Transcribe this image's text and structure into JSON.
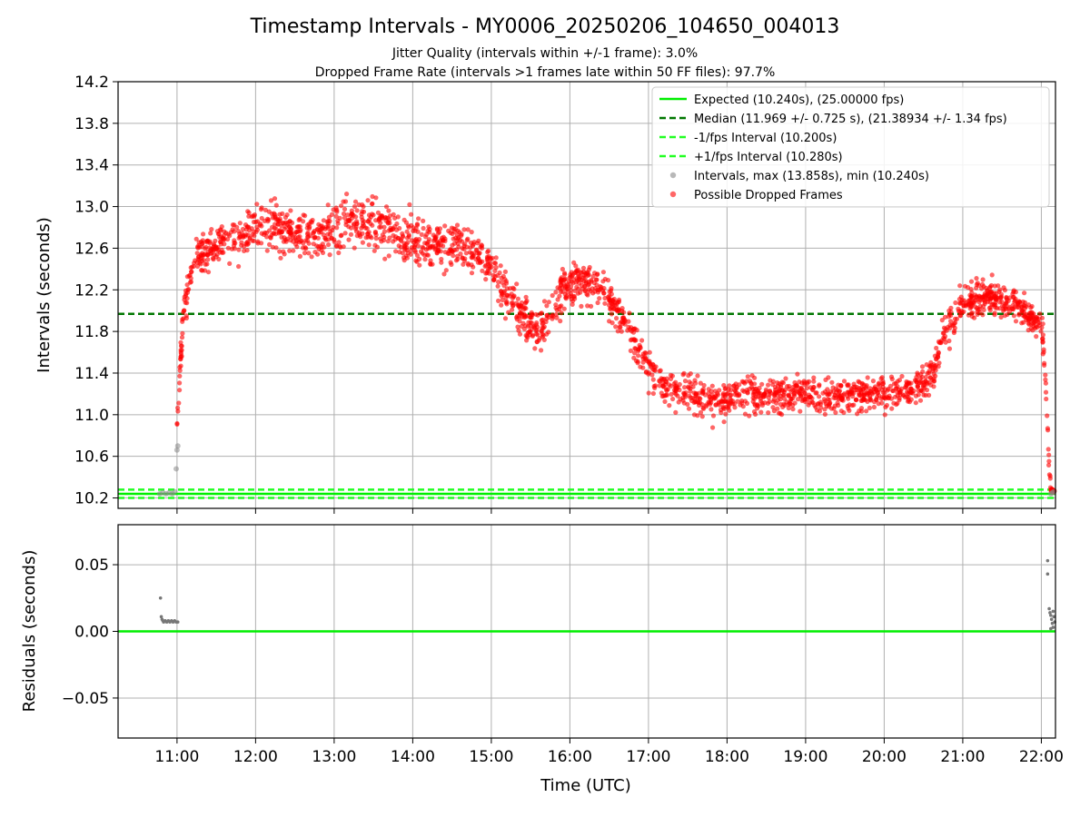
{
  "figure": {
    "title": "Timestamp Intervals - MY0006_20250206_104650_004013",
    "subtitle_1": "Jitter Quality (intervals within +/-1 frame): 3.0%",
    "subtitle_2": "Dropped Frame Rate (intervals >1 frames late within 50 FF files): 97.7%",
    "xlabel": "Time (UTC)"
  },
  "colors": {
    "expected": "#00ee00",
    "median": "#007700",
    "fps_bounds": "#22ff22",
    "intervals": "#888888",
    "dropped": "#ff0000",
    "grid": "#b0b0b0"
  },
  "chart_data": [
    {
      "type": "scatter",
      "panel": "intervals",
      "ylabel": "Intervals (seconds)",
      "x_unit": "hours UTC",
      "xlim": [
        10.25,
        22.18
      ],
      "ylim": [
        10.1,
        14.2
      ],
      "x_tick_labels": [
        "11:00",
        "12:00",
        "13:00",
        "14:00",
        "15:00",
        "16:00",
        "17:00",
        "18:00",
        "19:00",
        "20:00",
        "21:00",
        "22:00"
      ],
      "x_ticks": [
        11,
        12,
        13,
        14,
        15,
        16,
        17,
        18,
        19,
        20,
        21,
        22
      ],
      "y_ticks": [
        10.2,
        10.6,
        11.0,
        11.4,
        11.8,
        12.2,
        12.6,
        13.0,
        13.4,
        13.8,
        14.2
      ],
      "y_tick_labels": [
        "10.2",
        "10.6",
        "11.0",
        "11.4",
        "11.8",
        "12.2",
        "12.6",
        "13.0",
        "13.4",
        "13.8",
        "14.2"
      ],
      "grid": true,
      "legend_position": "top-right",
      "reference_lines": [
        {
          "name": "Expected (10.240s), (25.00000 fps)",
          "y": 10.24,
          "style": "solid",
          "color": "#00ee00"
        },
        {
          "name": "Median (11.969 +/- 0.725 s), (21.38934 +/- 1.34 fps)",
          "y": 11.969,
          "style": "dashed",
          "color": "#007700"
        },
        {
          "name": "-1/fps Interval (10.200s)",
          "y": 10.2,
          "style": "dashed",
          "color": "#22ff22"
        },
        {
          "name": "+1/fps Interval (10.280s)",
          "y": 10.28,
          "style": "dashed",
          "color": "#22ff22"
        }
      ],
      "series": [
        {
          "name": "Intervals, max (13.858s), min (10.240s)",
          "color": "#888888",
          "points": [
            [
              10.78,
              10.24
            ],
            [
              10.82,
              10.25
            ],
            [
              10.86,
              10.24
            ],
            [
              10.9,
              10.25
            ],
            [
              10.94,
              10.24
            ],
            [
              10.97,
              10.26
            ],
            [
              10.99,
              10.48
            ],
            [
              11.0,
              10.66
            ],
            [
              11.01,
              10.7
            ],
            [
              22.12,
              10.24
            ],
            [
              22.14,
              10.25
            ],
            [
              22.16,
              10.26
            ]
          ]
        },
        {
          "name": "Possible Dropped Frames",
          "color": "#ff0000",
          "trend": [
            [
              11.0,
              10.9
            ],
            [
              11.05,
              11.6
            ],
            [
              11.1,
              12.1
            ],
            [
              11.2,
              12.4
            ],
            [
              11.3,
              12.55
            ],
            [
              11.5,
              12.65
            ],
            [
              11.75,
              12.7
            ],
            [
              12.0,
              12.8
            ],
            [
              12.25,
              12.85
            ],
            [
              12.5,
              12.75
            ],
            [
              12.75,
              12.7
            ],
            [
              13.0,
              12.8
            ],
            [
              13.25,
              12.85
            ],
            [
              13.5,
              12.85
            ],
            [
              13.75,
              12.75
            ],
            [
              14.0,
              12.7
            ],
            [
              14.25,
              12.65
            ],
            [
              14.5,
              12.6
            ],
            [
              14.75,
              12.6
            ],
            [
              15.0,
              12.4
            ],
            [
              15.2,
              12.15
            ],
            [
              15.4,
              11.95
            ],
            [
              15.6,
              11.8
            ],
            [
              15.75,
              11.95
            ],
            [
              15.9,
              12.2
            ],
            [
              16.1,
              12.3
            ],
            [
              16.3,
              12.25
            ],
            [
              16.5,
              12.1
            ],
            [
              16.7,
              11.9
            ],
            [
              16.9,
              11.6
            ],
            [
              17.1,
              11.35
            ],
            [
              17.3,
              11.2
            ],
            [
              17.5,
              11.2
            ],
            [
              17.75,
              11.15
            ],
            [
              18.0,
              11.15
            ],
            [
              18.25,
              11.2
            ],
            [
              18.5,
              11.15
            ],
            [
              18.75,
              11.2
            ],
            [
              19.0,
              11.2
            ],
            [
              19.25,
              11.15
            ],
            [
              19.5,
              11.2
            ],
            [
              19.75,
              11.2
            ],
            [
              20.0,
              11.2
            ],
            [
              20.25,
              11.25
            ],
            [
              20.5,
              11.3
            ],
            [
              20.65,
              11.45
            ],
            [
              20.75,
              11.8
            ],
            [
              21.0,
              12.05
            ],
            [
              21.25,
              12.15
            ],
            [
              21.5,
              12.1
            ],
            [
              21.7,
              12.05
            ],
            [
              21.85,
              11.95
            ],
            [
              22.0,
              11.9
            ],
            [
              22.05,
              11.4
            ],
            [
              22.08,
              10.9
            ],
            [
              22.1,
              10.5
            ],
            [
              22.12,
              10.3
            ]
          ],
          "spread": [
            [
              11.0,
              0.15
            ],
            [
              11.2,
              0.25
            ],
            [
              12.0,
              0.3
            ],
            [
              13.0,
              0.3
            ],
            [
              14.0,
              0.28
            ],
            [
              15.0,
              0.25
            ],
            [
              16.0,
              0.25
            ],
            [
              17.0,
              0.22
            ],
            [
              18.0,
              0.22
            ],
            [
              19.0,
              0.2
            ],
            [
              20.0,
              0.2
            ],
            [
              21.0,
              0.22
            ],
            [
              22.0,
              0.2
            ],
            [
              22.12,
              0.1
            ]
          ],
          "count": 2400
        }
      ]
    },
    {
      "type": "scatter",
      "panel": "residuals",
      "ylabel": "Residuals (seconds)",
      "xlabel": "Time (UTC)",
      "xlim": [
        10.25,
        22.18
      ],
      "ylim": [
        -0.08,
        0.08
      ],
      "y_ticks": [
        0.05,
        0.0,
        -0.05
      ],
      "y_tick_labels": [
        "0.05",
        "0.00",
        "−0.05"
      ],
      "x_ticks": [
        11,
        12,
        13,
        14,
        15,
        16,
        17,
        18,
        19,
        20,
        21,
        22
      ],
      "x_tick_labels": [
        "11:00",
        "12:00",
        "13:00",
        "14:00",
        "15:00",
        "16:00",
        "17:00",
        "18:00",
        "19:00",
        "20:00",
        "21:00",
        "22:00"
      ],
      "grid": true,
      "reference_lines": [
        {
          "name": "Expected",
          "y": 0.0,
          "style": "solid",
          "color": "#00ee00"
        }
      ],
      "series": [
        {
          "name": "",
          "color": "#777777",
          "points": [
            [
              10.79,
              0.025
            ],
            [
              10.8,
              0.011
            ],
            [
              10.81,
              0.009
            ],
            [
              10.82,
              0.008
            ],
            [
              10.83,
              0.007
            ],
            [
              10.85,
              0.008
            ],
            [
              10.87,
              0.007
            ],
            [
              10.89,
              0.008
            ],
            [
              10.91,
              0.007
            ],
            [
              10.93,
              0.008
            ],
            [
              10.95,
              0.007
            ],
            [
              10.97,
              0.008
            ],
            [
              10.99,
              0.007
            ],
            [
              11.01,
              0.007
            ],
            [
              22.08,
              0.053
            ],
            [
              22.08,
              0.043
            ],
            [
              22.1,
              0.017
            ],
            [
              22.11,
              0.014
            ],
            [
              22.12,
              0.012
            ],
            [
              22.13,
              0.009
            ],
            [
              22.14,
              0.006
            ],
            [
              22.15,
              0.003
            ],
            [
              22.16,
              0.011
            ],
            [
              22.17,
              0.007
            ],
            [
              22.12,
              0.002
            ],
            [
              22.15,
              0.015
            ]
          ]
        }
      ]
    }
  ]
}
